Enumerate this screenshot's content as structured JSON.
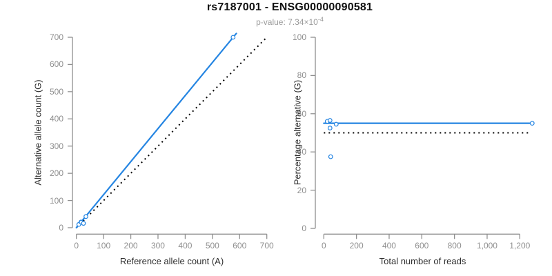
{
  "figure": {
    "subtitle_base": "p-value: 7.34×10",
    "subtitle_exponent": "-4",
    "colors": {
      "accent_blue": "#2585e2",
      "axis_gray": "#8f8f8f",
      "tick_label_gray": "#8f8f8f",
      "axis_title_dark": "#2e2e2e",
      "reference_black": "#000000",
      "background": "#ffffff"
    }
  },
  "chart_data": [
    {
      "type": "scatter",
      "title": "rs7187001 - ENSG00000090581",
      "subtitle": "p-value: 7.34×10^-4",
      "xlabel": "Reference allele count (A)",
      "ylabel": "Alternative allele count (G)",
      "xlim": [
        0,
        700
      ],
      "ylim": [
        0,
        700
      ],
      "grid": "off",
      "legend": "none",
      "xticks": [
        0,
        100,
        200,
        300,
        400,
        500,
        600,
        700
      ],
      "xtick_labels": [
        "0",
        "100",
        "200",
        "300",
        "400",
        "500",
        "600",
        "700"
      ],
      "yticks": [
        0,
        100,
        200,
        300,
        400,
        500,
        600,
        700
      ],
      "ytick_labels": [
        "0",
        "100",
        "200",
        "300",
        "400",
        "500",
        "600",
        "700"
      ],
      "points": [
        [
          9,
          12
        ],
        [
          17,
          21
        ],
        [
          18,
          20
        ],
        [
          35,
          41
        ],
        [
          26,
          16
        ],
        [
          576,
          700
        ]
      ],
      "fit_line": {
        "style": "solid",
        "color": "#2585e2",
        "x": [
          0,
          588
        ],
        "y": [
          0,
          714
        ]
      },
      "reference_line": {
        "style": "dotted",
        "color": "#000000",
        "x": [
          0,
          700
        ],
        "y": [
          0,
          700
        ]
      }
    },
    {
      "type": "scatter",
      "xlabel": "Total number of reads",
      "ylabel": "Percentage alternative (G)",
      "xlim": [
        0,
        1300
      ],
      "ylim": [
        0,
        100
      ],
      "grid": "off",
      "legend": "none",
      "xticks": [
        0,
        200,
        400,
        600,
        800,
        1000,
        1200
      ],
      "xtick_labels": [
        "0",
        "200",
        "400",
        "600",
        "800",
        "1,000",
        "1,200"
      ],
      "yticks": [
        0,
        20,
        40,
        60,
        80,
        100
      ],
      "ytick_labels": [
        "0",
        "20",
        "40",
        "60",
        "80",
        "100"
      ],
      "points": [
        [
          21,
          56
        ],
        [
          38,
          56.5
        ],
        [
          76,
          54.5
        ],
        [
          38,
          52.5
        ],
        [
          42,
          37.5
        ],
        [
          1276,
          55
        ]
      ],
      "fit_line": {
        "style": "solid",
        "color": "#2585e2",
        "x": [
          0,
          1276
        ],
        "y": [
          55,
          55
        ]
      },
      "reference_line": {
        "style": "dotted",
        "color": "#000000",
        "x": [
          0,
          1255
        ],
        "y": [
          50,
          50
        ]
      }
    }
  ]
}
